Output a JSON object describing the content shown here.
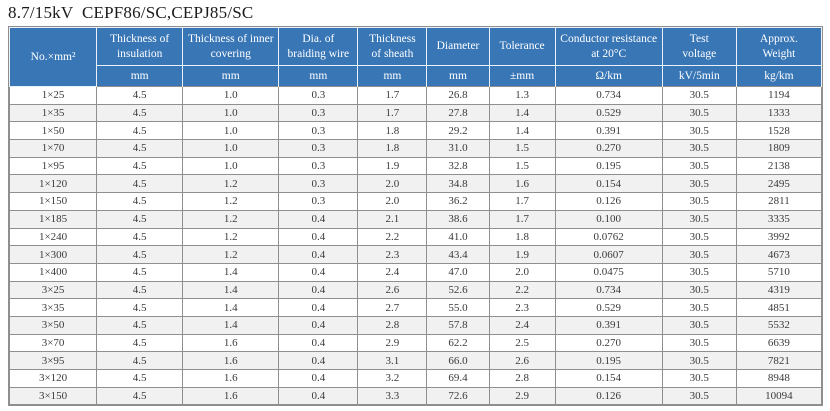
{
  "title": "8.7/15kV  CEPF86/SC,CEPJ85/SC",
  "colors": {
    "header_bg": "#3876b6",
    "header_separator": "#e9f0f7",
    "row_alt_bg": "#f1f1f1",
    "grid_border": "#8f8f8f",
    "header_text": "#ffffff",
    "body_text": "#3a3a3a"
  },
  "table": {
    "columns": [
      {
        "label": "No.×mm²",
        "unit": null
      },
      {
        "label": "Thickness of insulation",
        "unit": "mm"
      },
      {
        "label": "Thickness of inner covering",
        "unit": "mm"
      },
      {
        "label": "Dia. of braiding wire",
        "unit": "mm"
      },
      {
        "label": "Thickness of sheath",
        "unit": "mm"
      },
      {
        "label": "Diameter",
        "unit": "mm"
      },
      {
        "label": "Tolerance",
        "unit": "±mm"
      },
      {
        "label": "Conductor resistance at 20°C",
        "unit": "Ω/km"
      },
      {
        "label": "Test voltage",
        "unit": "kV/5min"
      },
      {
        "label": "Approx. Weight",
        "unit": "kg/km"
      }
    ],
    "rows": [
      [
        "1×25",
        "4.5",
        "1.0",
        "0.3",
        "1.7",
        "26.8",
        "1.3",
        "0.734",
        "30.5",
        "1194"
      ],
      [
        "1×35",
        "4.5",
        "1.0",
        "0.3",
        "1.7",
        "27.8",
        "1.4",
        "0.529",
        "30.5",
        "1333"
      ],
      [
        "1×50",
        "4.5",
        "1.0",
        "0.3",
        "1.8",
        "29.2",
        "1.4",
        "0.391",
        "30.5",
        "1528"
      ],
      [
        "1×70",
        "4.5",
        "1.0",
        "0.3",
        "1.8",
        "31.0",
        "1.5",
        "0.270",
        "30.5",
        "1809"
      ],
      [
        "1×95",
        "4.5",
        "1.0",
        "0.3",
        "1.9",
        "32.8",
        "1.5",
        "0.195",
        "30.5",
        "2138"
      ],
      [
        "1×120",
        "4.5",
        "1.2",
        "0.3",
        "2.0",
        "34.8",
        "1.6",
        "0.154",
        "30.5",
        "2495"
      ],
      [
        "1×150",
        "4.5",
        "1.2",
        "0.3",
        "2.0",
        "36.2",
        "1.7",
        "0.126",
        "30.5",
        "2811"
      ],
      [
        "1×185",
        "4.5",
        "1.2",
        "0.4",
        "2.1",
        "38.6",
        "1.7",
        "0.100",
        "30.5",
        "3335"
      ],
      [
        "1×240",
        "4.5",
        "1.2",
        "0.4",
        "2.2",
        "41.0",
        "1.8",
        "0.0762",
        "30.5",
        "3992"
      ],
      [
        "1×300",
        "4.5",
        "1.2",
        "0.4",
        "2.3",
        "43.4",
        "1.9",
        "0.0607",
        "30.5",
        "4673"
      ],
      [
        "1×400",
        "4.5",
        "1.4",
        "0.4",
        "2.4",
        "47.0",
        "2.0",
        "0.0475",
        "30.5",
        "5710"
      ],
      [
        "3×25",
        "4.5",
        "1.4",
        "0.4",
        "2.6",
        "52.6",
        "2.2",
        "0.734",
        "30.5",
        "4319"
      ],
      [
        "3×35",
        "4.5",
        "1.4",
        "0.4",
        "2.7",
        "55.0",
        "2.3",
        "0.529",
        "30.5",
        "4851"
      ],
      [
        "3×50",
        "4.5",
        "1.4",
        "0.4",
        "2.8",
        "57.8",
        "2.4",
        "0.391",
        "30.5",
        "5532"
      ],
      [
        "3×70",
        "4.5",
        "1.6",
        "0.4",
        "2.9",
        "62.2",
        "2.5",
        "0.270",
        "30.5",
        "6639"
      ],
      [
        "3×95",
        "4.5",
        "1.6",
        "0.4",
        "3.1",
        "66.0",
        "2.6",
        "0.195",
        "30.5",
        "7821"
      ],
      [
        "3×120",
        "4.5",
        "1.6",
        "0.4",
        "3.2",
        "69.4",
        "2.8",
        "0.154",
        "30.5",
        "8948"
      ],
      [
        "3×150",
        "4.5",
        "1.6",
        "0.4",
        "3.3",
        "72.6",
        "2.9",
        "0.126",
        "30.5",
        "10094"
      ]
    ]
  }
}
